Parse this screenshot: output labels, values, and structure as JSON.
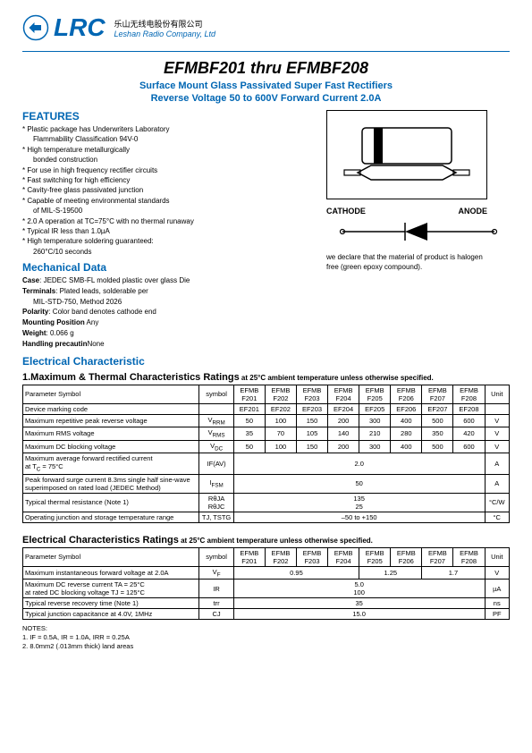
{
  "header": {
    "company_cn": "乐山无线电股份有限公司",
    "company_en": "Leshan Radio Company, Ltd"
  },
  "title": {
    "main": "EFMBF201 thru EFMBF208",
    "sub1": "Surface Mount Glass Passivated Super Fast  Rectifiers",
    "sub2": "Reverse Voltage 50 to 600V Forward Current 2.0A"
  },
  "features": {
    "heading": "FEATURES",
    "items": [
      "*  Plastic package has Underwriters Laboratory",
      "Flammability Classification 94V-0",
      "*  High temperature metallurgically",
      "bonded construction",
      "*  For use in high frequency rectifier circuits",
      "*  Fast switching for high efficiency",
      "*  Cavity-free glass passivated junction",
      "*  Capable of meeting environmental standards",
      "of MIL-S-19500",
      "*  2.0 A operation at TC=75°C with no thermal runaway",
      "*  Typical IR less than 1.0µA",
      "*  High temperature soldering guaranteed:",
      "260°C/10 seconds"
    ],
    "indents": [
      false,
      true,
      false,
      true,
      false,
      false,
      false,
      false,
      true,
      false,
      false,
      false,
      true
    ]
  },
  "mechanical": {
    "heading": "Mechanical Data",
    "lines": [
      {
        "b": "Case",
        "t": ": JEDEC  SMB-FL molded plastic over glass Die"
      },
      {
        "b": "Terminals",
        "t": ": Plated  leads, solderable per"
      },
      {
        "b": "",
        "t": "MIL-STD-750, Method 2026"
      },
      {
        "b": "Polarity",
        "t": ": Color band denotes cathode end"
      },
      {
        "b": "Mounting Position",
        "t": " Any"
      },
      {
        "b": "Weight",
        "t": ": 0.066 g"
      },
      {
        "b": "Handling precautin",
        "t": "None"
      }
    ]
  },
  "halogen": {
    "line1": "we declare that the material of product is halogen",
    "line2": "free (green epoxy compound)."
  },
  "diagram": {
    "cathode": "CATHODE",
    "anode": "ANODE"
  },
  "electrical_heading": "Electrical Characteristic",
  "table1": {
    "title": "1.Maximum  & Thermal Characteristics Ratings",
    "title_note": " at 25°C ambient temperature unless otherwise specified.",
    "header_param": "Parameter Symbol",
    "header_symbol": "symbol",
    "header_unit": "Unit",
    "models": [
      "EFMB F201",
      "EFMB F202",
      "EFMB F203",
      "EFMB F204",
      "EFMB F205",
      "EFMB F206",
      "EFMB F207",
      "EFMB F208"
    ],
    "rows": [
      {
        "p": "Device marking code",
        "s": "",
        "v": [
          "EF201",
          "EF202",
          "EF203",
          "EF204",
          "EF205",
          "EF206",
          "EF207",
          "EF208"
        ],
        "u": ""
      },
      {
        "p": "Maximum repetitive peak reverse voltage",
        "s": "V<sub>RRM</sub>",
        "v": [
          "50",
          "100",
          "150",
          "200",
          "300",
          "400",
          "500",
          "600"
        ],
        "u": "V"
      },
      {
        "p": "Maximum RMS voltage",
        "s": "V<sub>RMS</sub>",
        "v": [
          "35",
          "70",
          "105",
          "140",
          "210",
          "280",
          "350",
          "420"
        ],
        "u": "V"
      },
      {
        "p": "Maximum DC blocking voltage",
        "s": "V<sub>DC</sub>",
        "v": [
          "50",
          "100",
          "150",
          "200",
          "300",
          "400",
          "500",
          "600"
        ],
        "u": "V"
      },
      {
        "p": "Maximum average forward rectified current<br>at T<sub>C</sub> = 75°C",
        "s": "IF(AV)",
        "span": "2.0",
        "u": "A"
      },
      {
        "p": "Peak forward surge current 8.3ms single half sine-wave superimposed on rated load (JEDEC Method)",
        "s": "I<sub>FSM</sub>",
        "span": "50",
        "u": "A"
      },
      {
        "p": "Typical thermal resistance (Note 1)",
        "s": "RθJA<br>RθJC",
        "span": "135<br>25",
        "u": "°C/W"
      },
      {
        "p": "Operating junction and storage temperature range",
        "s": "TJ, TSTG",
        "span": "–50 to +150",
        "u": "°C"
      }
    ]
  },
  "table2": {
    "title": "Electrical Characteristics Ratings",
    "title_note": " at 25°C ambient temperature unless otherwise specified.",
    "header_param": "Parameter Symbol",
    "header_symbol": "symbol",
    "header_unit": "Unit",
    "models": [
      "EFMB F201",
      "EFMB F202",
      "EFMB F203",
      "EFMB F204",
      "EFMB F205",
      "EFMB F206",
      "EFMB F207",
      "EFMB F208"
    ],
    "rows": [
      {
        "p": "Maximum instantaneous forward voltage at 2.0A",
        "s": "V<sub>F</sub>",
        "spans": [
          {
            "c": 4,
            "v": "0.95"
          },
          {
            "c": 2,
            "v": "1.25"
          },
          {
            "c": 2,
            "v": "1.7"
          }
        ],
        "u": "V"
      },
      {
        "p": "Maximum DC reverse current TA = 25°C<br>at rated DC blocking voltage TJ = 125°C",
        "s": "IR",
        "span": "5.0<br>100",
        "u": "µA"
      },
      {
        "p": "Typical reverse recovery time (Note 1)",
        "s": "trr",
        "span": "35",
        "u": "ns"
      },
      {
        "p": "Typical junction capacitance at 4.0V, 1MHz",
        "s": "CJ",
        "span": "15.0",
        "u": "PF"
      }
    ]
  },
  "notes": {
    "heading": "NOTES:",
    "items": [
      "1.  IF = 0.5A, IR = 1.0A, IRR = 0.25A",
      "2.  8.0mm2 (.013mm thick) land areas"
    ]
  }
}
